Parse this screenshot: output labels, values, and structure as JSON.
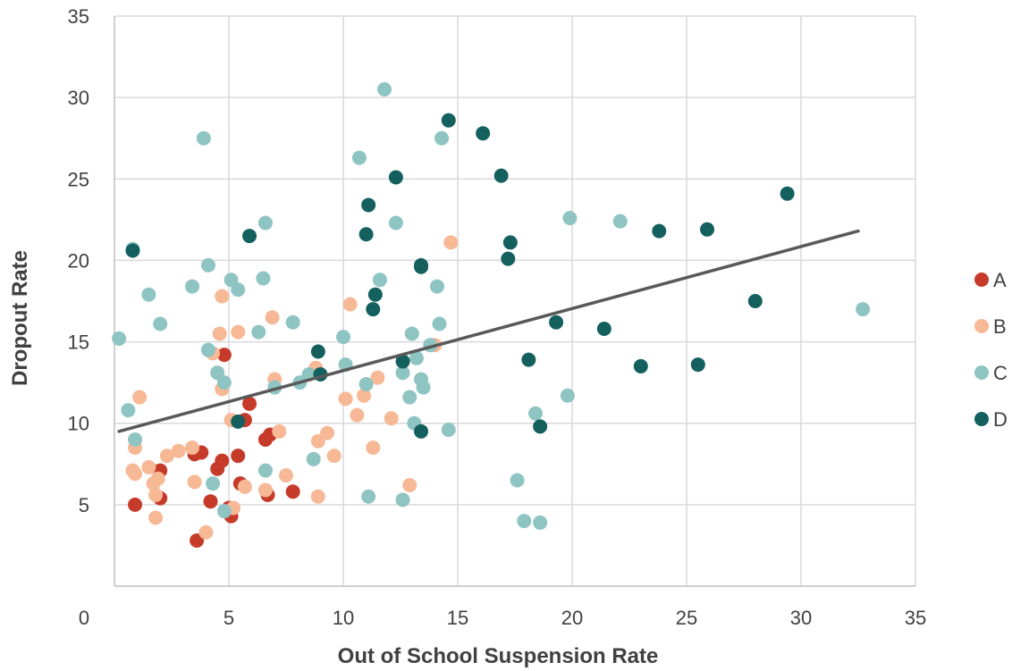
{
  "chart_data": {
    "type": "scatter",
    "title": "",
    "xlabel": "Out of School Suspension Rate",
    "ylabel": "Dropout Rate",
    "xlim": [
      0,
      35
    ],
    "ylim": [
      0,
      35
    ],
    "x_ticks": [
      0,
      5,
      10,
      15,
      20,
      25,
      30,
      35
    ],
    "y_ticks": [
      5,
      10,
      15,
      20,
      25,
      30,
      35
    ],
    "grid": true,
    "legend_position": "right",
    "series": [
      {
        "name": "A",
        "color": "#C63A2A",
        "points": [
          [
            0.9,
            5.0
          ],
          [
            2.0,
            5.4
          ],
          [
            2.0,
            7.1
          ],
          [
            3.5,
            8.1
          ],
          [
            3.8,
            8.2
          ],
          [
            3.6,
            2.8
          ],
          [
            4.2,
            5.2
          ],
          [
            4.5,
            7.2
          ],
          [
            4.7,
            7.7
          ],
          [
            4.8,
            14.2
          ],
          [
            5.0,
            4.8
          ],
          [
            5.1,
            4.3
          ],
          [
            5.4,
            8.0
          ],
          [
            5.5,
            6.3
          ],
          [
            5.7,
            10.2
          ],
          [
            5.9,
            11.2
          ],
          [
            6.6,
            9.0
          ],
          [
            6.8,
            9.3
          ],
          [
            6.7,
            5.6
          ],
          [
            7.8,
            5.8
          ]
        ]
      },
      {
        "name": "B",
        "color": "#F7B896",
        "points": [
          [
            0.8,
            7.1
          ],
          [
            0.9,
            6.9
          ],
          [
            0.9,
            8.5
          ],
          [
            1.1,
            11.6
          ],
          [
            1.5,
            7.3
          ],
          [
            1.7,
            6.3
          ],
          [
            1.8,
            5.6
          ],
          [
            1.8,
            4.2
          ],
          [
            1.9,
            6.6
          ],
          [
            2.3,
            8.0
          ],
          [
            2.8,
            8.3
          ],
          [
            3.4,
            8.5
          ],
          [
            3.5,
            6.4
          ],
          [
            4.0,
            3.3
          ],
          [
            4.3,
            14.3
          ],
          [
            4.6,
            15.5
          ],
          [
            4.7,
            12.1
          ],
          [
            4.7,
            17.8
          ],
          [
            5.1,
            10.2
          ],
          [
            5.2,
            4.8
          ],
          [
            5.4,
            15.6
          ],
          [
            5.7,
            6.1
          ],
          [
            6.6,
            5.9
          ],
          [
            6.9,
            16.5
          ],
          [
            7.0,
            12.7
          ],
          [
            7.2,
            9.5
          ],
          [
            7.5,
            6.8
          ],
          [
            8.8,
            13.4
          ],
          [
            8.9,
            8.9
          ],
          [
            8.9,
            5.5
          ],
          [
            9.3,
            9.4
          ],
          [
            9.6,
            8.0
          ],
          [
            10.1,
            11.5
          ],
          [
            10.3,
            17.3
          ],
          [
            10.6,
            10.5
          ],
          [
            10.9,
            11.7
          ],
          [
            11.3,
            8.5
          ],
          [
            11.5,
            12.8
          ],
          [
            12.1,
            10.3
          ],
          [
            12.9,
            6.2
          ],
          [
            14.0,
            14.8
          ],
          [
            14.7,
            21.1
          ]
        ]
      },
      {
        "name": "C",
        "color": "#8EC4C2",
        "points": [
          [
            0.2,
            15.2
          ],
          [
            0.6,
            10.8
          ],
          [
            0.8,
            20.7
          ],
          [
            0.9,
            9.0
          ],
          [
            1.5,
            17.9
          ],
          [
            2.0,
            16.1
          ],
          [
            3.4,
            18.4
          ],
          [
            3.9,
            27.5
          ],
          [
            4.1,
            14.5
          ],
          [
            4.1,
            19.7
          ],
          [
            4.3,
            6.3
          ],
          [
            4.5,
            13.1
          ],
          [
            4.8,
            4.6
          ],
          [
            4.8,
            12.5
          ],
          [
            5.1,
            18.8
          ],
          [
            5.4,
            18.2
          ],
          [
            6.3,
            15.6
          ],
          [
            6.5,
            18.9
          ],
          [
            6.6,
            22.3
          ],
          [
            6.6,
            7.1
          ],
          [
            7.0,
            12.2
          ],
          [
            7.8,
            16.2
          ],
          [
            8.1,
            12.5
          ],
          [
            8.5,
            13.0
          ],
          [
            8.7,
            7.8
          ],
          [
            10.0,
            15.3
          ],
          [
            10.1,
            13.6
          ],
          [
            10.7,
            26.3
          ],
          [
            11.0,
            12.4
          ],
          [
            11.1,
            5.5
          ],
          [
            11.6,
            18.8
          ],
          [
            11.8,
            30.5
          ],
          [
            12.3,
            22.3
          ],
          [
            12.6,
            5.3
          ],
          [
            12.6,
            13.1
          ],
          [
            12.9,
            11.6
          ],
          [
            13.0,
            15.5
          ],
          [
            13.1,
            10.0
          ],
          [
            13.2,
            14.0
          ],
          [
            13.4,
            12.7
          ],
          [
            13.5,
            12.2
          ],
          [
            13.8,
            14.8
          ],
          [
            14.1,
            18.4
          ],
          [
            14.2,
            16.1
          ],
          [
            14.3,
            27.5
          ],
          [
            14.6,
            9.6
          ],
          [
            17.6,
            6.5
          ],
          [
            17.9,
            4.0
          ],
          [
            18.4,
            10.6
          ],
          [
            18.6,
            3.9
          ],
          [
            19.8,
            11.7
          ],
          [
            19.9,
            22.6
          ],
          [
            22.1,
            22.4
          ],
          [
            32.7,
            17.0
          ]
        ]
      },
      {
        "name": "D",
        "color": "#14605F",
        "points": [
          [
            0.8,
            20.6
          ],
          [
            5.4,
            10.1
          ],
          [
            5.9,
            21.5
          ],
          [
            8.9,
            14.4
          ],
          [
            9.0,
            13.0
          ],
          [
            11.0,
            21.6
          ],
          [
            11.1,
            23.4
          ],
          [
            11.3,
            17.0
          ],
          [
            11.4,
            17.9
          ],
          [
            12.3,
            25.1
          ],
          [
            12.6,
            13.8
          ],
          [
            13.4,
            19.7
          ],
          [
            13.4,
            19.6
          ],
          [
            13.4,
            9.5
          ],
          [
            14.6,
            28.6
          ],
          [
            16.1,
            27.8
          ],
          [
            16.9,
            25.2
          ],
          [
            17.2,
            20.1
          ],
          [
            17.3,
            21.1
          ],
          [
            18.1,
            13.9
          ],
          [
            18.6,
            9.8
          ],
          [
            19.3,
            16.2
          ],
          [
            21.4,
            15.8
          ],
          [
            23.0,
            13.5
          ],
          [
            23.8,
            21.8
          ],
          [
            25.5,
            13.6
          ],
          [
            25.9,
            21.9
          ],
          [
            28.0,
            17.5
          ],
          [
            29.4,
            24.1
          ]
        ]
      }
    ],
    "trendline": {
      "type": "linear",
      "color": "#595959",
      "x": [
        0.2,
        32.5
      ],
      "y": [
        9.5,
        21.8
      ]
    }
  }
}
